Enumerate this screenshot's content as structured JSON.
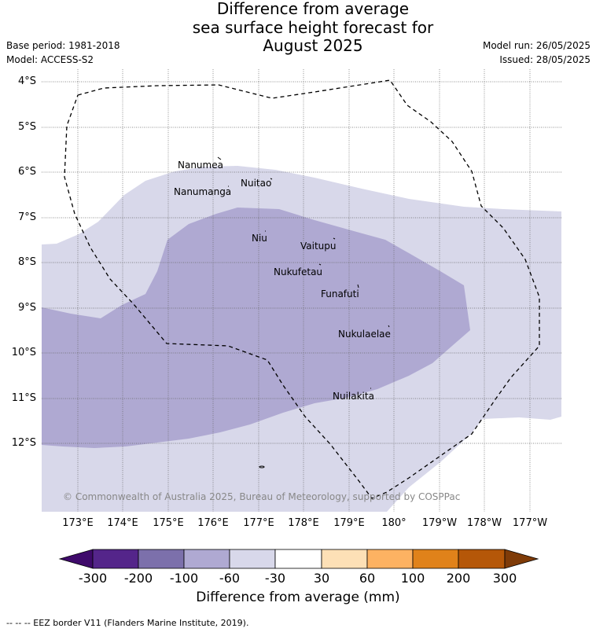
{
  "title": {
    "line1": "Difference from average",
    "line2": "sea surface height forecast for",
    "line3": "August 2025"
  },
  "meta": {
    "base_period": "Base period: 1981-2018",
    "model": "Model: ACCESS-S2",
    "model_run": "Model run: 26/05/2025",
    "issued": "Issued: 28/05/2025"
  },
  "map": {
    "latitude_labels": [
      "4°S",
      "5°S",
      "6°S",
      "7°S",
      "8°S",
      "9°S",
      "10°S",
      "11°S",
      "12°S"
    ],
    "longitude_labels": [
      "173°E",
      "174°E",
      "175°E",
      "176°E",
      "177°E",
      "178°E",
      "179°E",
      "180°",
      "179°W",
      "178°W",
      "177°W"
    ],
    "islands": {
      "nanumea": "Nanumea",
      "nuitao": "Nuitao",
      "nanumanga": "Nanumanga",
      "niu": "Niu",
      "vaitupu": "Vaitupu",
      "nukufetau": "Nukufetau",
      "funafuti": "Funafuti",
      "nukulaelae": "Nukulaelae",
      "nuilakita": "Nuilakita"
    },
    "copyright": "© Commonwealth of Australia 2025, Bureau of Meteorology, supported by COSPPac",
    "fill_colors": {
      "light": "#d8d8ea",
      "medium": "#afa9d2"
    }
  },
  "colorbar": {
    "ticks": [
      "-300",
      "-200",
      "-100",
      "-60",
      "-30",
      "30",
      "60",
      "100",
      "200",
      "300"
    ],
    "colors": [
      "#3f0a6b",
      "#54258a",
      "#7c70ab",
      "#afa9d2",
      "#d8d8ea",
      "#ffffff",
      "#fde0b6",
      "#fdb262",
      "#e0821a",
      "#b55708",
      "#7f3b08"
    ],
    "label": "Difference from average (mm)"
  },
  "footnote": "-- -- -- EEZ border V11 (Flanders Marine Institute, 2019)."
}
